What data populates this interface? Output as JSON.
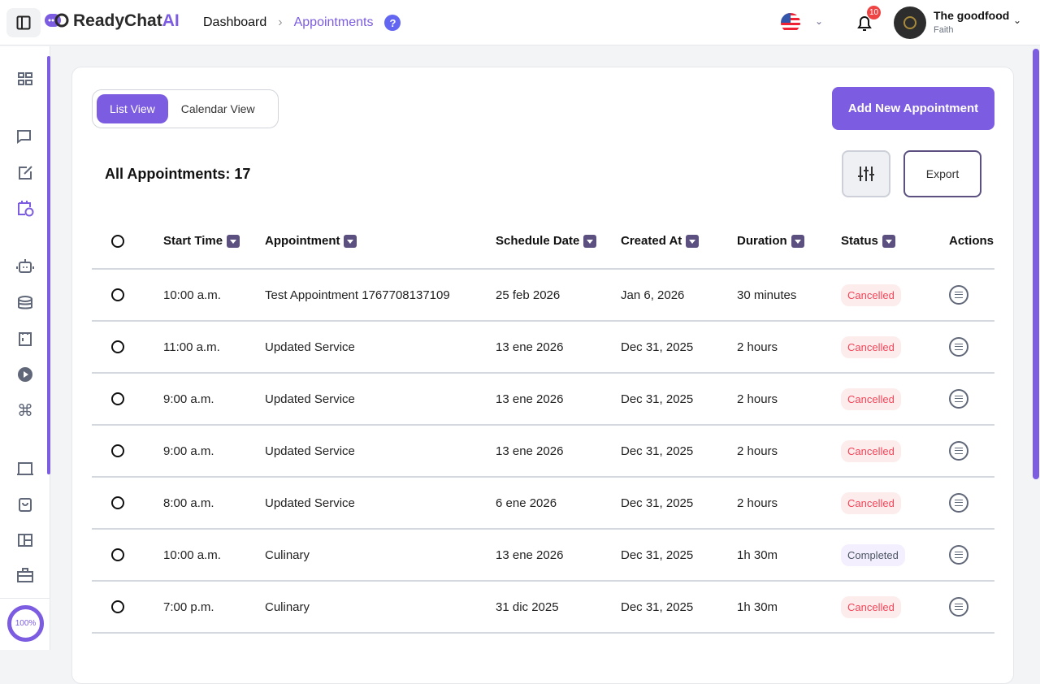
{
  "header": {
    "logo_text": "ReadyChat",
    "logo_ai": "AI",
    "breadcrumb": [
      "Dashboard",
      "Appointments"
    ],
    "help": "?",
    "notifications": "10",
    "user_name": "The goodfood",
    "user_role": "Faith"
  },
  "sidebar": {
    "items": [
      "dashboard",
      "chats",
      "edit",
      "appointments",
      "bot",
      "database",
      "clipboard",
      "play",
      "command",
      "receipt",
      "bag",
      "layout",
      "briefcase"
    ],
    "active": "appointments",
    "zoom": "100%"
  },
  "main": {
    "tabs": [
      "List View",
      "Calendar View"
    ],
    "active_tab": "List View",
    "add_button": "Add New Appointment",
    "total_label": "All Appointments: 17",
    "export": "Export",
    "columns": [
      "Start Time",
      "Appointment",
      "Schedule Date",
      "Created At",
      "Duration",
      "Status",
      "Actions"
    ],
    "rows": [
      {
        "start": "10:00 a.m.",
        "name": "Test Appointment 1767708137109",
        "date": "25 feb 2026",
        "created": "Jan 6, 2026",
        "duration": "30 minutes",
        "status": "Cancelled"
      },
      {
        "start": "11:00 a.m.",
        "name": "Updated Service",
        "date": "13 ene 2026",
        "created": "Dec 31, 2025",
        "duration": "2 hours",
        "status": "Cancelled"
      },
      {
        "start": "9:00 a.m.",
        "name": "Updated Service",
        "date": "13 ene 2026",
        "created": "Dec 31, 2025",
        "duration": "2 hours",
        "status": "Cancelled"
      },
      {
        "start": "9:00 a.m.",
        "name": "Updated Service",
        "date": "13 ene 2026",
        "created": "Dec 31, 2025",
        "duration": "2 hours",
        "status": "Cancelled"
      },
      {
        "start": "8:00 a.m.",
        "name": "Updated Service",
        "date": "6 ene 2026",
        "created": "Dec 31, 2025",
        "duration": "2 hours",
        "status": "Cancelled"
      },
      {
        "start": "10:00 a.m.",
        "name": "Culinary",
        "date": "13 ene 2026",
        "created": "Dec 31, 2025",
        "duration": "1h 30m",
        "status": "Completed"
      },
      {
        "start": "7:00 p.m.",
        "name": "Culinary",
        "date": "31 dic 2025",
        "created": "Dec 31, 2025",
        "duration": "1h 30m",
        "status": "Cancelled"
      }
    ]
  },
  "colors": {
    "accent": "#7c5ce0",
    "cancelled": "#f2465a",
    "cancelled_bg": "#fdecec",
    "completed_bg": "#f3effe"
  }
}
